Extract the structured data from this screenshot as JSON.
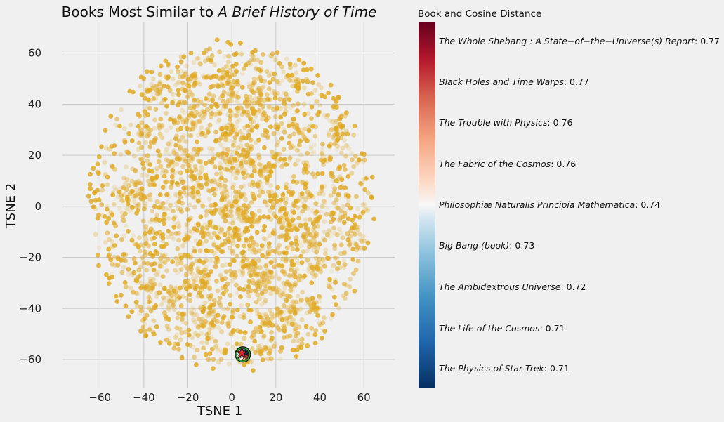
{
  "chart_data": {
    "type": "scatter",
    "title_prefix": "Books Most Similar to ",
    "title_italic": "A Brief History of Time",
    "xlabel": "TSNE 1",
    "ylabel": "TSNE 2",
    "xlim": [
      -77,
      74
    ],
    "ylim": [
      -71,
      72
    ],
    "xticks": [
      -60,
      -40,
      -20,
      0,
      20,
      40,
      60
    ],
    "yticks": [
      -60,
      -40,
      -20,
      0,
      20,
      40,
      60
    ],
    "grid": true,
    "background_color": "#f0f0f0",
    "point_color": "#e1aa25",
    "background_points_note": "thousands of semi-transparent gold points filling a roughly circular cloud of radius ~65 centred near (0,0)",
    "highlight": {
      "target": {
        "x": 4.5,
        "y": -57.5,
        "marker": "star",
        "color": "#d62728"
      },
      "neighbors_cluster_center": [
        5,
        -58
      ]
    },
    "colorbar": {
      "title": "Book and Cosine Distance",
      "cmap": "RdBu_r",
      "entries": [
        {
          "title": "The Whole Shebang : A State−of−the−Universe(s) Report",
          "value": "0.77",
          "color": "#67001f"
        },
        {
          "title": "Black Holes and Time Warps",
          "value": "0.77",
          "color": "#c1373a"
        },
        {
          "title": "The Trouble with Physics",
          "value": "0.76",
          "color": "#f09c7b"
        },
        {
          "title": "The Fabric of the Cosmos",
          "value": "0.76",
          "color": "#fbe3d6"
        },
        {
          "title": "Philosophiæ Naturalis Principia Mathematica",
          "value": "0.74",
          "color": "#f7f7f7"
        },
        {
          "title": "Big Bang (book)",
          "value": "0.73",
          "color": "#d1e5f0"
        },
        {
          "title": "The Ambidextrous Universe",
          "value": "0.72",
          "color": "#92c5de"
        },
        {
          "title": "The Life of the Cosmos",
          "value": "0.71",
          "color": "#3a87bd"
        },
        {
          "title": "The Physics of Star Trek",
          "value": "0.71",
          "color": "#053061"
        }
      ]
    }
  }
}
